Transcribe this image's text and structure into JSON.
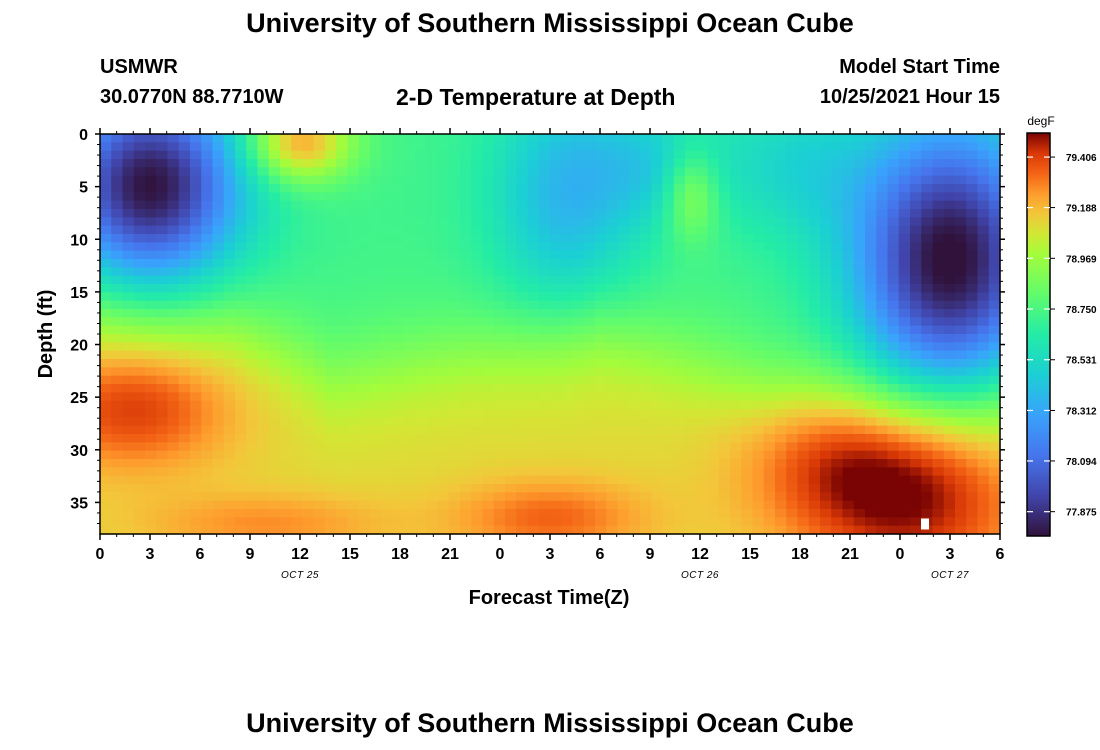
{
  "header": {
    "title": "University of Southern Mississippi Ocean Cube",
    "station": "USMWR",
    "coordinates": "30.0770N  88.7710W",
    "subtitle": "2-D Temperature at Depth",
    "model_start_label": "Model Start Time",
    "model_start_value": "10/25/2021 Hour 15"
  },
  "footer": {
    "title": "University of Southern Mississippi Ocean Cube"
  },
  "chart_data": {
    "type": "heatmap",
    "title": "2-D Temperature at Depth",
    "xlabel": "Forecast Time(Z)",
    "ylabel": "Depth (ft)",
    "x_tick_labels": [
      "0",
      "3",
      "6",
      "9",
      "12",
      "15",
      "18",
      "21",
      "0",
      "3",
      "6",
      "9",
      "12",
      "15",
      "18",
      "21",
      "0",
      "3",
      "6"
    ],
    "date_labels": [
      {
        "label": "OCT 25",
        "at_tick": 4
      },
      {
        "label": "OCT 26",
        "at_tick": 12
      },
      {
        "label": "OCT 27",
        "at_tick": 17
      }
    ],
    "x_range_hours": [
      0,
      54
    ],
    "y_ticks": [
      0,
      5,
      10,
      15,
      20,
      25,
      30,
      35
    ],
    "y_range_ft": [
      0,
      38
    ],
    "colorbar": {
      "units": "degF",
      "min": 77.77,
      "max": 79.51,
      "tick_values": [
        79.406,
        79.188,
        78.969,
        78.75,
        78.531,
        78.312,
        78.094,
        77.875
      ],
      "tick_labels": [
        "79.406",
        "79.188",
        "78.969",
        "78.750",
        "78.531",
        "78.312",
        "78.094",
        "77.875"
      ]
    },
    "anomaly_marker": {
      "hour": 49.5,
      "depth_ft": 37
    },
    "temperature_features": [
      {
        "hour": 3,
        "depth_ft": 4,
        "value": 77.8
      },
      {
        "hour": 12,
        "depth_ft": 1,
        "value": 79.25
      },
      {
        "hour": 35.5,
        "depth_ft": 5,
        "value": 78.98
      },
      {
        "hour": 52,
        "depth_ft": 9,
        "value": 77.85
      },
      {
        "hour": 49,
        "depth_ft": 35,
        "value": 79.48
      },
      {
        "hour": 3,
        "depth_ft": 27,
        "value": 79.15
      },
      {
        "hour": 27,
        "depth_ft": 36,
        "value": 79.2
      },
      {
        "hour": 18,
        "depth_ft": 26,
        "value": 79.05
      }
    ]
  }
}
